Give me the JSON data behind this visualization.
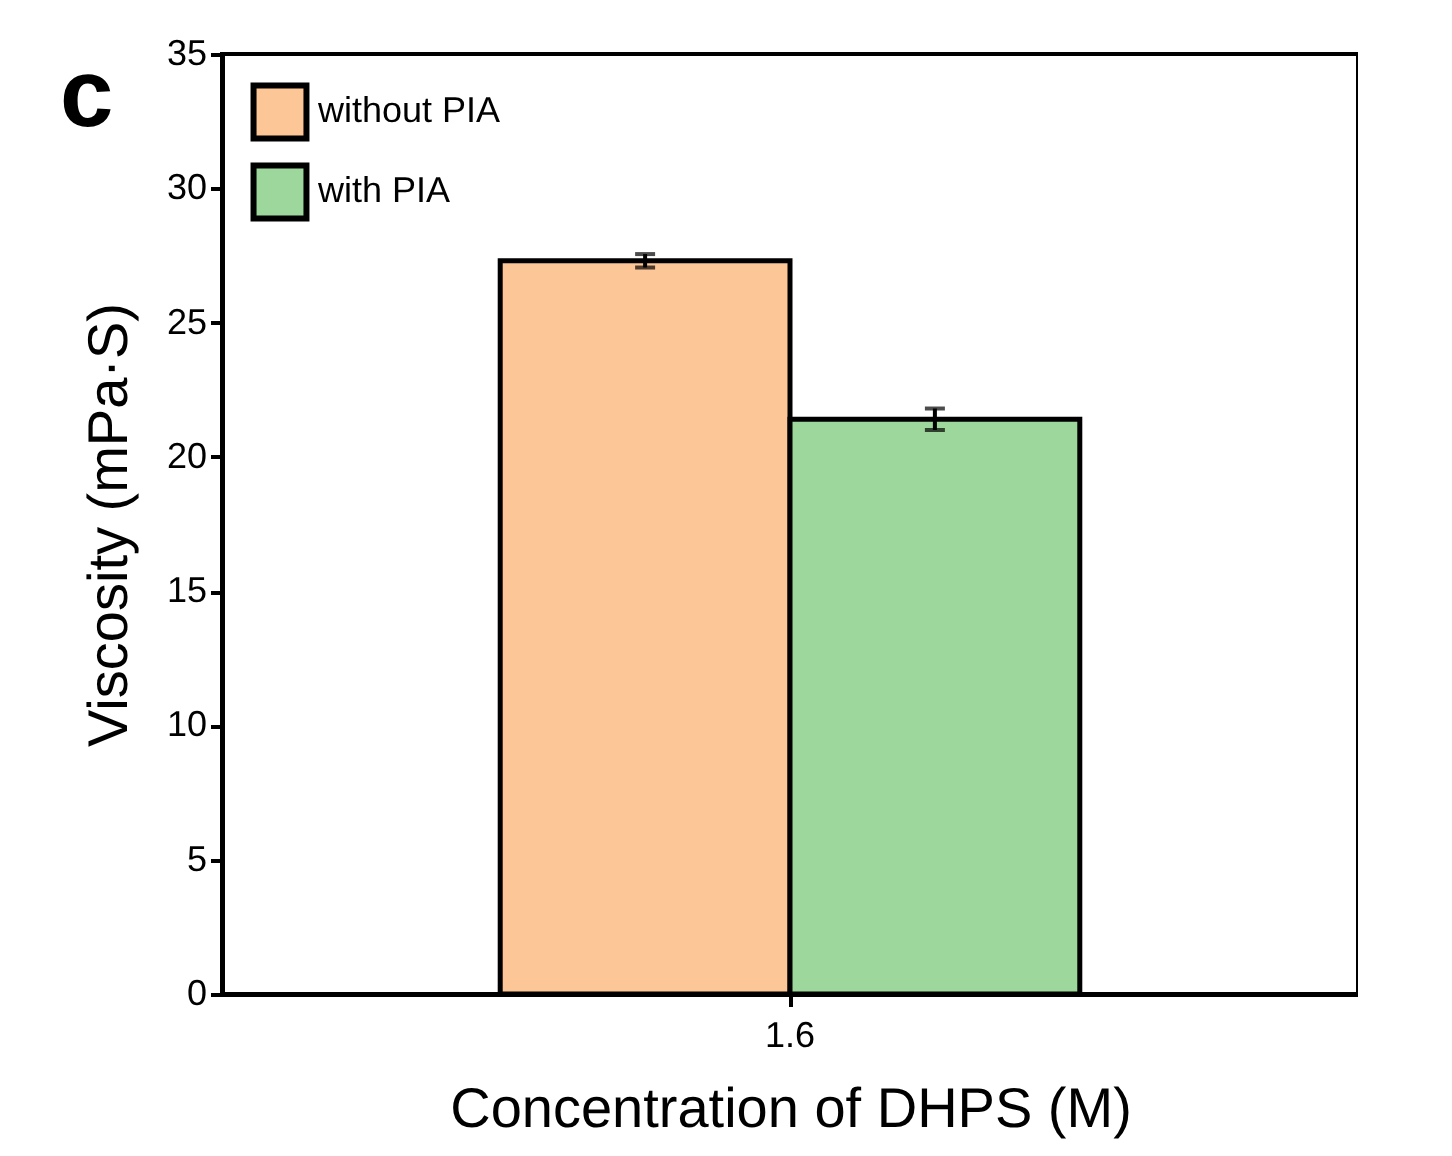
{
  "chart_data": {
    "type": "bar",
    "xlabel": "Concentration of DHPS (M)",
    "ylabel": "Viscosity (mPa·S)",
    "annotations": [
      "c"
    ],
    "categories": [
      "1.6"
    ],
    "series": [
      {
        "name": "without PIA",
        "color": "#fdc697",
        "values": [
          27.3
        ],
        "errors": [
          0.25
        ]
      },
      {
        "name": "with PIA",
        "color": "#9dd79c",
        "values": [
          21.4
        ],
        "errors": [
          0.4
        ]
      }
    ],
    "ylim": [
      0,
      35
    ],
    "yticks": [
      0,
      5,
      10,
      15,
      20,
      25,
      30,
      35
    ],
    "grid": false,
    "legend": "top left"
  }
}
